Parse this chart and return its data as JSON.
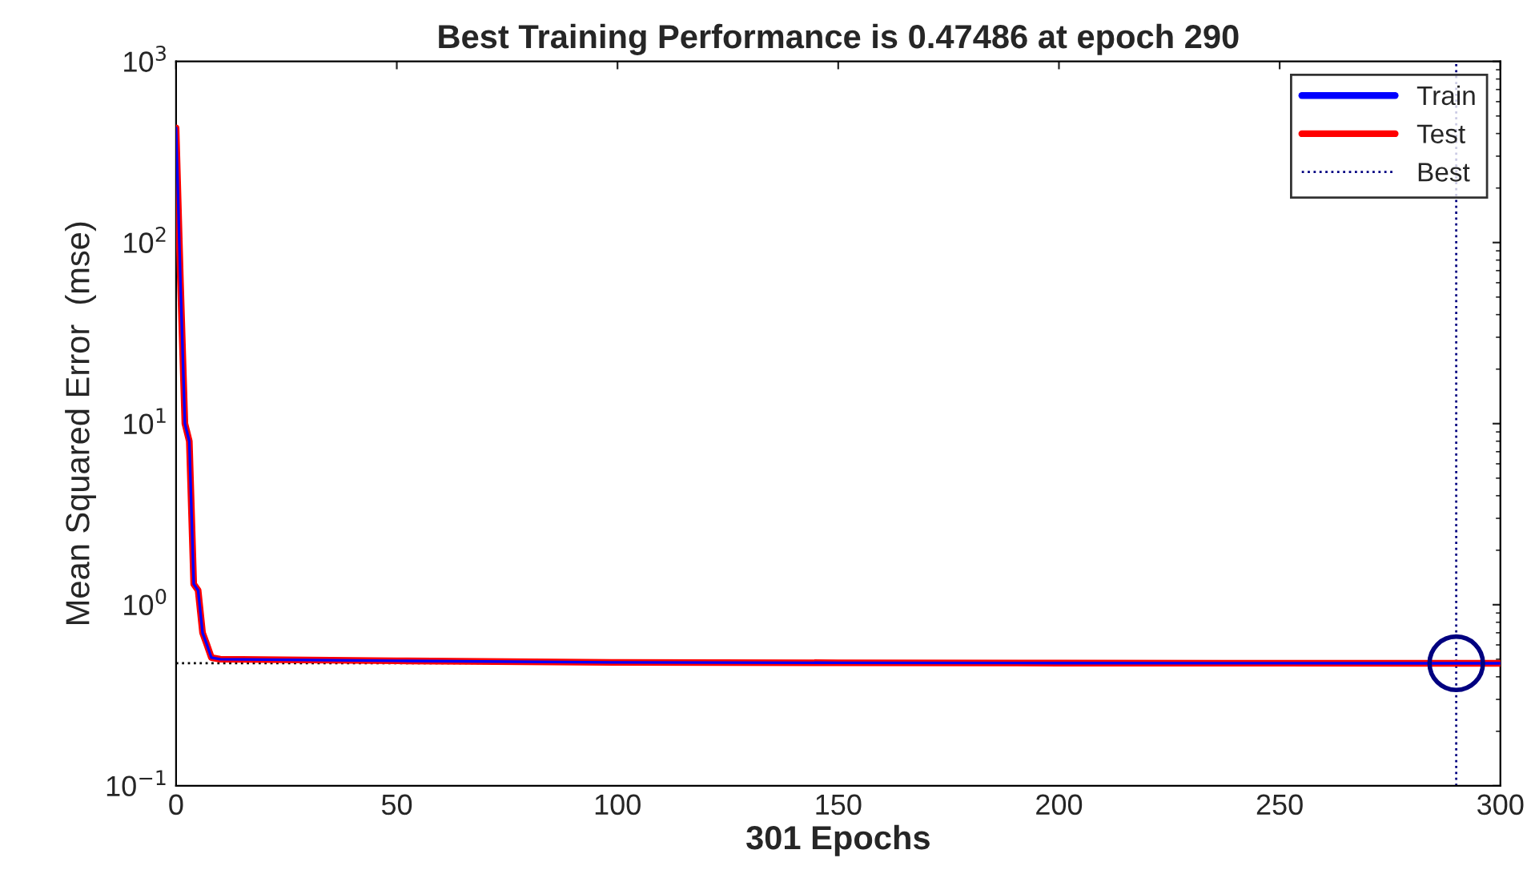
{
  "chart_data": {
    "type": "line",
    "title": "Best Training Performance is 0.47486 at epoch 290",
    "xlabel": "301 Epochs",
    "ylabel": "Mean Squared Error  (mse)",
    "log": "y",
    "xlim": [
      0,
      300
    ],
    "xticks": [
      0,
      50,
      100,
      150,
      200,
      250,
      300
    ],
    "ylim": [
      0.1,
      1000
    ],
    "yticks": [
      {
        "value": 0.1,
        "label": "10$^{−1}$"
      },
      {
        "value": 1,
        "label": "10$^{0}$"
      },
      {
        "value": 10,
        "label": "10$^{1}$"
      },
      {
        "value": 100,
        "label": "10$^{2}$"
      },
      {
        "value": 1000,
        "label": "10$^{3}$"
      }
    ],
    "grid": false,
    "legend": "top right",
    "series": [
      {
        "name": "Train",
        "color": "#0000ff",
        "x": [
          0,
          1,
          2,
          3,
          4,
          5,
          6,
          7,
          8,
          10,
          50,
          100,
          150,
          200,
          250,
          290,
          300
        ],
        "values": [
          430,
          60,
          10,
          8,
          1.3,
          1.2,
          0.7,
          0.6,
          0.51,
          0.5,
          0.49,
          0.48,
          0.478,
          0.476,
          0.475,
          0.47486,
          0.4748
        ]
      },
      {
        "name": "Test",
        "color": "#ff0000",
        "x": [
          0,
          1,
          2,
          3,
          4,
          5,
          6,
          7,
          8,
          10,
          50,
          100,
          150,
          200,
          250,
          290,
          300
        ],
        "values": [
          430,
          60,
          10,
          8,
          1.3,
          1.2,
          0.7,
          0.6,
          0.51,
          0.5,
          0.49,
          0.48,
          0.478,
          0.476,
          0.475,
          0.47486,
          0.4748
        ]
      },
      {
        "name": "Best",
        "color": "#000080",
        "type": "scatter",
        "marker": "circle",
        "line_style": "dotted",
        "x": [
          290
        ],
        "values": [
          0.47486
        ]
      }
    ],
    "ref_lines": [
      {
        "axis": "x",
        "value": 290,
        "color": "#000080",
        "line_style": "dotted"
      },
      {
        "axis": "y",
        "value": 0.47486,
        "color": "#000000",
        "line_style": "dotted"
      }
    ]
  }
}
